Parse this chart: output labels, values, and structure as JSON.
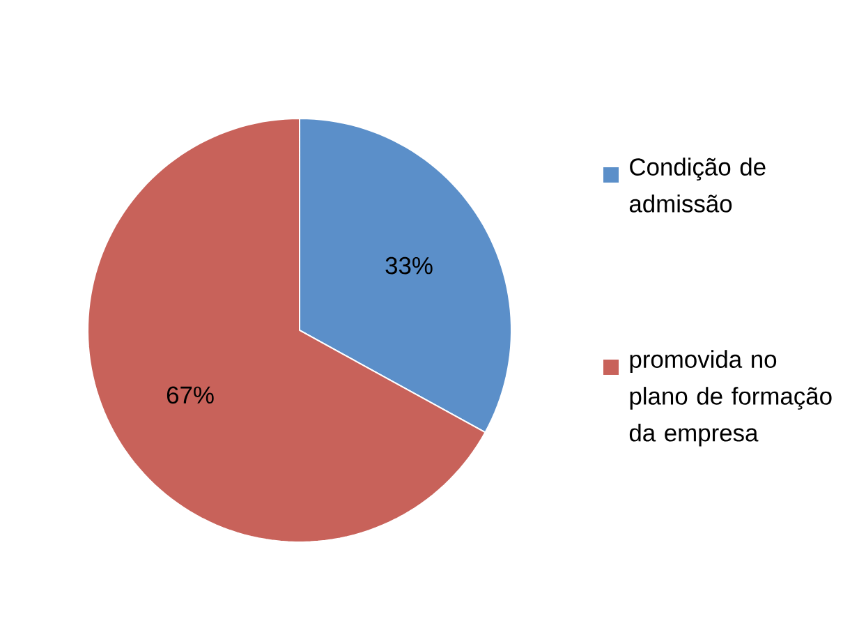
{
  "chart_data": {
    "type": "pie",
    "categories": [
      "Condição de admissão",
      "promovida no plano de formação da empresa"
    ],
    "values": [
      33,
      67
    ],
    "colors": [
      "#5b8fc9",
      "#c8625a"
    ],
    "value_labels": [
      "33%",
      "67%"
    ],
    "legend": "right"
  }
}
